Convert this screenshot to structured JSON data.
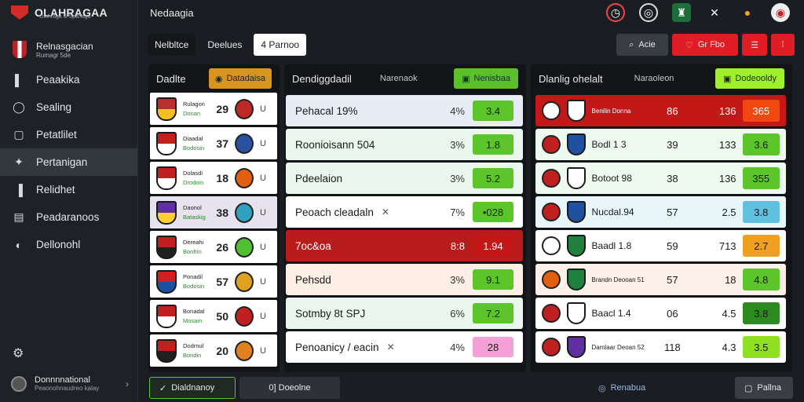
{
  "app": {
    "title": "OLAHRAGAA",
    "subtitle": "Olahraga & Sparlaga"
  },
  "account": {
    "name": "Relnasgacian",
    "handle": "Rumagr 5de"
  },
  "nav": [
    {
      "label": "Peaakika",
      "icon": "square-icon"
    },
    {
      "label": "Sealing",
      "icon": "chat-icon"
    },
    {
      "label": "Petatlilet",
      "icon": "ticket-icon"
    },
    {
      "label": "Pertanigan",
      "icon": "trophy-icon",
      "active": true
    },
    {
      "label": "Relidhet",
      "icon": "chart-icon"
    },
    {
      "label": "Peadaranoos",
      "icon": "document-icon"
    },
    {
      "label": "Dellonohl",
      "icon": "circle-icon"
    }
  ],
  "sidebar_footer": {
    "user_line1": "Donnnnational",
    "user_line2": "Peaonohnaudreo kalay"
  },
  "topbar": {
    "title": "Nedaagia"
  },
  "tabs": [
    {
      "label": "Nelbltce"
    },
    {
      "label": "Deelues"
    },
    {
      "label": "4 Parnoo"
    }
  ],
  "tools": {
    "search_label": "Acie",
    "fav_label": "Gr Fbo"
  },
  "panel1": {
    "title": "Dadlte",
    "button": "Datadaisa",
    "rows": [
      {
        "n1": "Rulagon",
        "n2": "Donan",
        "score": "29",
        "c1": "#b83030",
        "c2": "#f0c020",
        "b": "#c02828"
      },
      {
        "n1": "Diaadal",
        "n2": "Bodosin",
        "score": "37",
        "c1": "#c02020",
        "c2": "#ffffff",
        "b": "#2a50a0"
      },
      {
        "n1": "Dolasdi",
        "n2": "Drodoin",
        "score": "18",
        "c1": "#c02020",
        "c2": "#ffffff",
        "b": "#e06010"
      },
      {
        "n1": "Daonol",
        "n2": "Bataskig",
        "score": "38",
        "c1": "#6030a0",
        "c2": "#ffd030",
        "b": "#30a0c0",
        "alt": true
      },
      {
        "n1": "Dereahi",
        "n2": "Bonfrin",
        "score": "26",
        "c1": "#c02020",
        "c2": "#202020",
        "b": "#50c030"
      },
      {
        "n1": "Ponadil",
        "n2": "Bodosin",
        "score": "57",
        "c1": "#d02020",
        "c2": "#1a50a0",
        "b": "#e0a020"
      },
      {
        "n1": "Bonadal",
        "n2": "Mosain",
        "score": "50",
        "c1": "#c02020",
        "c2": "#ffffff",
        "b": "#c02020"
      },
      {
        "n1": "Dodrnul",
        "n2": "Bondin",
        "score": "20",
        "c1": "#c02020",
        "c2": "#202020",
        "b": "#e08020"
      }
    ]
  },
  "panel2": {
    "title": "Dendiggdadil",
    "sub": "Narenaok",
    "button": "Nenisbaa",
    "rows": [
      {
        "label": "Pehacal 19%",
        "pct": "4%",
        "val": "3.4",
        "bg": "#e8ecf6",
        "vbg": "#5bc52a"
      },
      {
        "label": "Roonioisann 504",
        "pct": "3%",
        "val": "1.8",
        "bg": "#eaf7ee",
        "vbg": "#5bc52a"
      },
      {
        "label": "Pdeelaion",
        "pct": "3%",
        "val": "5.2",
        "bg": "#eaf7ee",
        "vbg": "#5bc52a"
      },
      {
        "label": "Peoach cleadaln",
        "pct": "7%",
        "val": "•028",
        "bg": "#ffffff",
        "vbg": "#5bc52a",
        "x": "✕"
      },
      {
        "label": "7oc&oa",
        "pct": "8:8",
        "val": "1.94",
        "bg": "#b81c1c",
        "vbg": "#c41818",
        "dark": true
      },
      {
        "label": "Pehsdd",
        "pct": "3%",
        "val": "9.1",
        "bg": "#fdeee6",
        "vbg": "#5bc52a"
      },
      {
        "label": "Sotmby 8t SPJ",
        "pct": "6%",
        "val": "7.2",
        "bg": "#eaf7ee",
        "vbg": "#5bc52a"
      },
      {
        "label": "Penoanicy / eacin",
        "pct": "4%",
        "val": "28",
        "bg": "#ffffff",
        "vbg": "#f6a0d8",
        "x": "✕"
      }
    ]
  },
  "panel3": {
    "title": "Dlanlig ohelalt",
    "sub": "Naraoleon",
    "button": "Dodeooldy",
    "rows": [
      {
        "team": "Benilin Donna",
        "small": true,
        "c1": "86",
        "c2": "136",
        "v": "365",
        "bg": "#c41818",
        "vbg": "#f04810",
        "dark": true,
        "b1": "#ffffff",
        "b2": "#ffffff"
      },
      {
        "team": "Bodl 1 3",
        "c1": "39",
        "c2": "133",
        "v": "3.6",
        "bg": "#eefaf0",
        "vbg": "#5bc52a",
        "b1": "#c02020",
        "b2": "#2050a0"
      },
      {
        "team": "Botoot 98",
        "c1": "38",
        "c2": "136",
        "v": "355",
        "bg": "#eefaf0",
        "vbg": "#5bc52a",
        "b1": "#c02020",
        "b2": "#ffffff"
      },
      {
        "team": "Nucdal.94",
        "c1": "57",
        "c2": "2.5",
        "v": "3.8",
        "bg": "#e8f6fa",
        "vbg": "#60c0e0",
        "b1": "#c02020",
        "b2": "#2050a0"
      },
      {
        "team": "Baadl 1.8",
        "c1": "59",
        "c2": "713",
        "v": "2.7",
        "bg": "#ffffff",
        "vbg": "#f0a020",
        "b1": "#ffffff",
        "b2": "#208040"
      },
      {
        "team": "Brandn Deooan 51",
        "small": true,
        "c1": "57",
        "c2": "18",
        "v": "4.8",
        "bg": "#fdf0e8",
        "vbg": "#5bc52a",
        "b1": "#e06010",
        "b2": "#208040"
      },
      {
        "team": "Baacl 1.4",
        "c1": "06",
        "c2": "4.5",
        "v": "3.8",
        "bg": "#ffffff",
        "vbg": "#2c8a20",
        "b1": "#c02020",
        "b2": "#ffffff"
      },
      {
        "team": "Damlaar Deoan 52",
        "small": true,
        "c1": "118",
        "c2": "4.3",
        "v": "3.5",
        "bg": "#ffffff",
        "vbg": "#8ee020",
        "b1": "#c02020",
        "b2": "#6030a0"
      }
    ]
  },
  "footer": {
    "left_btn": "Dialdnanoy",
    "left_btn2": "0] Doeolne",
    "mid": "Renabua",
    "right_btn": "Pallna"
  },
  "colors": {
    "bg": "#1a1d22",
    "accent_red": "#e01c24",
    "accent_green": "#5bc52a",
    "accent_orange": "#d79520"
  }
}
